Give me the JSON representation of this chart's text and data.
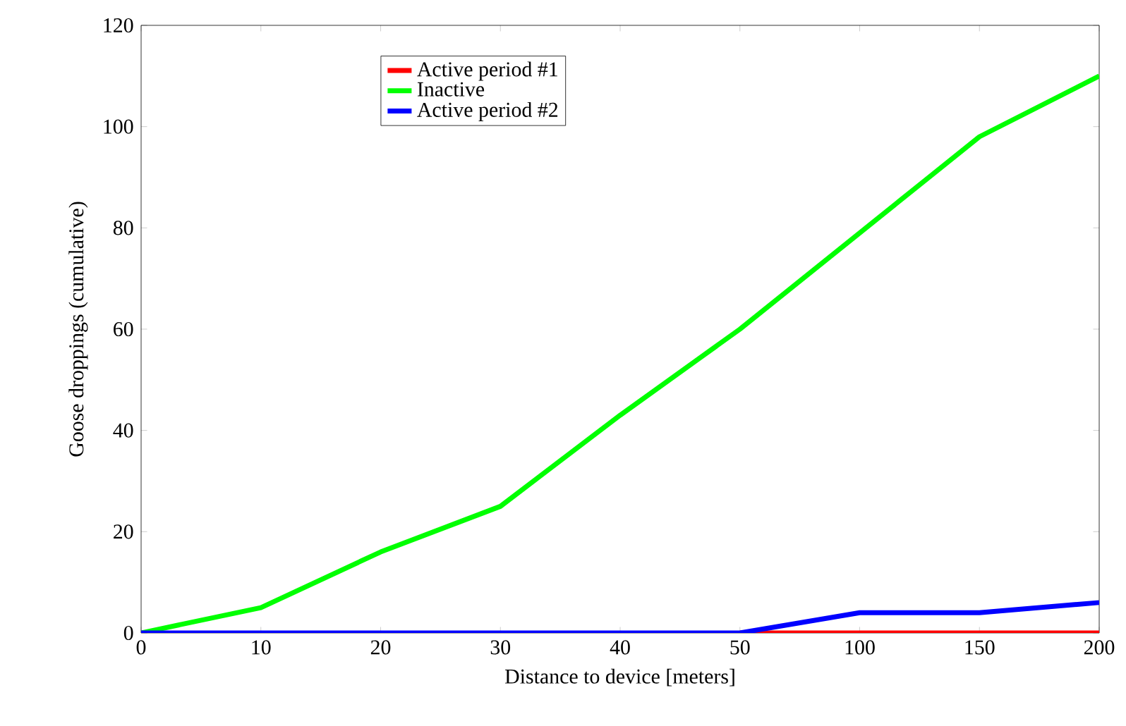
{
  "chart_data": {
    "type": "line",
    "xlabel": "Distance to device [meters]",
    "ylabel": "Goose droppings (cumulative)",
    "categories": [
      "0",
      "10",
      "20",
      "30",
      "40",
      "50",
      "100",
      "150",
      "200"
    ],
    "ylim": [
      0,
      120
    ],
    "yticks": [
      0,
      20,
      40,
      60,
      80,
      100,
      120
    ],
    "legend": "top left",
    "grid": false,
    "marker": "none",
    "line_style": "solid",
    "series": [
      {
        "name": "Active period #1",
        "color": "#ff0000",
        "values": [
          null,
          null,
          null,
          null,
          null,
          0,
          0,
          0,
          0
        ]
      },
      {
        "name": "Inactive",
        "color": "#00ff00",
        "values": [
          0,
          5,
          16,
          25,
          43,
          60,
          79,
          98,
          110
        ]
      },
      {
        "name": "Active period #2",
        "color": "#0000ff",
        "values": [
          0,
          0,
          0,
          0,
          0,
          0,
          4,
          4,
          6
        ]
      }
    ]
  }
}
